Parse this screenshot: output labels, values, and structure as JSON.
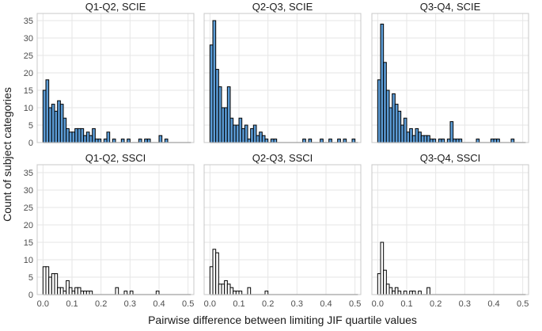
{
  "chart_data": {
    "type": "bar",
    "subtype": "histogram-facets",
    "xlabel": "Pairwise difference between limiting JIF quartile values",
    "ylabel": "Count of subject categories",
    "bin_width": 0.01,
    "xlim": [
      -0.02,
      0.52
    ],
    "ylim": [
      0,
      37
    ],
    "x_ticks": [
      0.0,
      0.1,
      0.2,
      0.3,
      0.4,
      0.5
    ],
    "x_tick_labels": [
      "0.0",
      "0.1",
      "0.2",
      "0.3",
      "0.4",
      "0.5"
    ],
    "y_ticks": [
      0,
      5,
      10,
      15,
      20,
      25,
      30,
      35
    ],
    "y_tick_labels": [
      "0",
      "5",
      "10",
      "15",
      "20",
      "25",
      "30",
      "35"
    ],
    "grid": true,
    "colors": {
      "scie_fill": "#5b9bd5",
      "ssci_fill": "#ffffff",
      "outline": "#000000",
      "grid": "#e6e6e6",
      "panel_border": "#c8c8c8"
    },
    "panels": [
      {
        "title": "Q1-Q2, SCIE",
        "group": "SCIE",
        "values": [
          15,
          18,
          10,
          11,
          9,
          12,
          11,
          7,
          4,
          3,
          3,
          4,
          4,
          4,
          2,
          3,
          2,
          4,
          1,
          1,
          0,
          1,
          3,
          0,
          1,
          0,
          0,
          1,
          0,
          1,
          0,
          0,
          0,
          1,
          0,
          1,
          1,
          0,
          0,
          0,
          2,
          0,
          1,
          0,
          0,
          0,
          0,
          0,
          0,
          0,
          0
        ]
      },
      {
        "title": "Q2-Q3, SCIE",
        "group": "SCIE",
        "values": [
          28,
          35,
          21,
          16,
          10,
          10,
          16,
          7,
          5,
          5,
          7,
          4,
          5,
          1,
          4,
          5,
          2,
          3,
          2,
          1,
          0,
          1,
          1,
          0,
          0,
          0,
          0,
          0,
          0,
          0,
          0,
          0,
          1,
          0,
          1,
          0,
          0,
          0,
          1,
          0,
          0,
          1,
          0,
          0,
          1,
          0,
          1,
          0,
          0,
          1,
          0
        ]
      },
      {
        "title": "Q3-Q4, SCIE",
        "group": "SCIE",
        "values": [
          18,
          34,
          23,
          15,
          10,
          14,
          11,
          9,
          5,
          7,
          3,
          4,
          2,
          4,
          3,
          2,
          2,
          2,
          1,
          1,
          0,
          1,
          1,
          0,
          1,
          6,
          1,
          1,
          1,
          0,
          0,
          0,
          0,
          0,
          1,
          0,
          0,
          0,
          0,
          1,
          1,
          1,
          0,
          0,
          0,
          0,
          1,
          0,
          0,
          0,
          0
        ]
      },
      {
        "title": "Q1-Q2, SSCI",
        "group": "SSCI",
        "values": [
          8,
          8,
          5,
          6,
          6,
          2,
          2,
          1,
          4,
          2,
          1,
          2,
          2,
          1,
          1,
          1,
          1,
          0,
          0,
          0,
          0,
          0,
          0,
          0,
          0,
          2,
          0,
          0,
          1,
          0,
          1,
          0,
          0,
          0,
          0,
          0,
          0,
          0,
          0,
          1,
          0,
          0,
          0,
          0,
          0,
          0,
          0,
          0,
          0,
          0,
          0
        ]
      },
      {
        "title": "Q2-Q3, SSCI",
        "group": "SSCI",
        "values": [
          8,
          13,
          12,
          3,
          3,
          4,
          3,
          2,
          1,
          1,
          1,
          0,
          0,
          2,
          0,
          0,
          0,
          0,
          0,
          1,
          0,
          0,
          0,
          0,
          0,
          0,
          0,
          0,
          0,
          0,
          0,
          0,
          0,
          0,
          0,
          0,
          0,
          0,
          0,
          0,
          0,
          0,
          0,
          0,
          0,
          0,
          0,
          0,
          0,
          0,
          0
        ]
      },
      {
        "title": "Q3-Q4, SSCI",
        "group": "SSCI",
        "values": [
          6,
          15,
          7,
          3,
          2,
          1,
          2,
          1,
          0,
          1,
          0,
          1,
          1,
          0,
          1,
          0,
          0,
          2,
          0,
          0,
          0,
          0,
          0,
          0,
          0,
          0,
          0,
          0,
          0,
          0,
          0,
          0,
          0,
          0,
          0,
          0,
          0,
          0,
          0,
          0,
          0,
          0,
          0,
          0,
          0,
          0,
          0,
          0,
          0,
          0,
          0
        ]
      }
    ]
  }
}
